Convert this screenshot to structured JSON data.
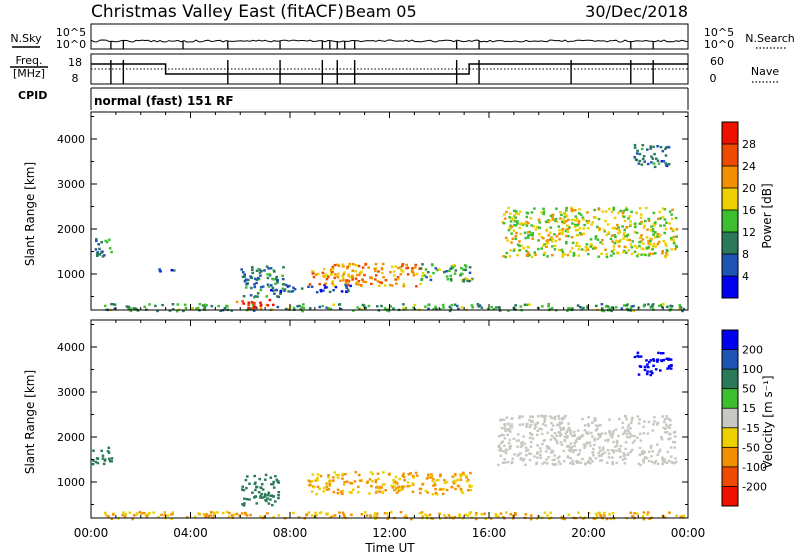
{
  "header": {
    "title": "Christmas Valley East (fitACF)",
    "beam": "Beam 05",
    "date": "30/Dec/2018"
  },
  "panels": {
    "nsky_label": "N.Sky",
    "nsky_top": "10^5",
    "nsky_bottom": "10^0",
    "nsearch_label": "N.Search",
    "nsearch_top": "10^5",
    "nsearch_bottom": "10^0",
    "freq_label": "Freq.",
    "freq_unit": "[MHz]",
    "freq_top": "18",
    "freq_bottom": "8",
    "nave_label": "Nave",
    "nave_top": "60",
    "nave_bottom": "0",
    "cpid_label": "CPID",
    "cpid_value": "normal (fast) 151 RF"
  },
  "colors": {
    "power": [
      "#0000ee",
      "#1e54b4",
      "#2a7a5a",
      "#3cbe2e",
      "#ecd000",
      "#f39000",
      "#f04a00",
      "#ee1100"
    ],
    "velocity": [
      "#0000ee",
      "#1e54b4",
      "#2a7a5a",
      "#3cbe2e",
      "#c8c8c2",
      "#ecd000",
      "#f39000",
      "#f04a00",
      "#ee1100"
    ],
    "ground_scatter": "#c8c8c2"
  },
  "chart_data": [
    {
      "type": "heatmap",
      "name": "power",
      "ylabel": "Slant Range [km]",
      "x_ticks": [
        "00:00",
        "04:00",
        "08:00",
        "12:00",
        "16:00",
        "20:00",
        "00:00"
      ],
      "y_ticks": [
        "1000",
        "2000",
        "3000",
        "4000"
      ],
      "ylim": [
        200,
        4600
      ],
      "colorbar_label": "Power [dB]",
      "colorbar_ticks": [
        "4",
        "8",
        "12",
        "16",
        "20",
        "24",
        "28"
      ],
      "colorbar_range": [
        0,
        32
      ],
      "regions": [
        {
          "t0": 0.0,
          "t1": 0.8,
          "r0": 1400,
          "r1": 1800,
          "level": 10
        },
        {
          "t0": 2.7,
          "t1": 3.5,
          "r0": 1050,
          "r1": 1150,
          "level": 6
        },
        {
          "t0": 6.0,
          "t1": 7.7,
          "r0": 500,
          "r1": 1200,
          "level": 9
        },
        {
          "t0": 7.0,
          "t1": 10.5,
          "r0": 620,
          "r1": 800,
          "level": 6
        },
        {
          "t0": 8.7,
          "t1": 13.3,
          "r0": 750,
          "r1": 1250,
          "level": 22
        },
        {
          "t0": 13.2,
          "t1": 15.3,
          "r0": 850,
          "r1": 1250,
          "level": 12
        },
        {
          "t0": 16.5,
          "t1": 23.5,
          "r0": 1400,
          "r1": 2500,
          "level": 17
        },
        {
          "t0": 21.8,
          "t1": 23.2,
          "r0": 3400,
          "r1": 3900,
          "level": 8
        },
        {
          "t0": 0.5,
          "t1": 23.8,
          "r0": 200,
          "r1": 360,
          "level": 12
        },
        {
          "t0": 5.8,
          "t1": 7.4,
          "r0": 250,
          "r1": 450,
          "level": 28
        }
      ]
    },
    {
      "type": "heatmap",
      "name": "velocity",
      "ylabel": "Slant Range [km]",
      "xlabel": "Time UT",
      "x_ticks": [
        "00:00",
        "04:00",
        "08:00",
        "12:00",
        "16:00",
        "20:00",
        "00:00"
      ],
      "y_ticks": [
        "1000",
        "2000",
        "3000",
        "4000"
      ],
      "ylim": [
        200,
        4600
      ],
      "colorbar_label": "Velocity [m s⁻¹]",
      "colorbar_ticks": [
        "200",
        "100",
        "50",
        "15",
        "-15",
        "-50",
        "-100",
        "-200"
      ],
      "regions": [
        {
          "t0": 0.0,
          "t1": 0.8,
          "r0": 1400,
          "r1": 1800,
          "velocity": 40
        },
        {
          "t0": 6.0,
          "t1": 7.5,
          "r0": 500,
          "r1": 1200,
          "velocity": 60
        },
        {
          "t0": 8.7,
          "t1": 15.3,
          "r0": 750,
          "r1": 1250,
          "velocity": -30
        },
        {
          "t0": 16.3,
          "t1": 23.5,
          "r0": 1400,
          "r1": 2500,
          "velocity": 0
        },
        {
          "t0": 21.8,
          "t1": 23.3,
          "r0": 3400,
          "r1": 3900,
          "velocity": 220
        },
        {
          "t0": 0.5,
          "t1": 23.8,
          "r0": 200,
          "r1": 360,
          "velocity": -30
        }
      ]
    }
  ]
}
